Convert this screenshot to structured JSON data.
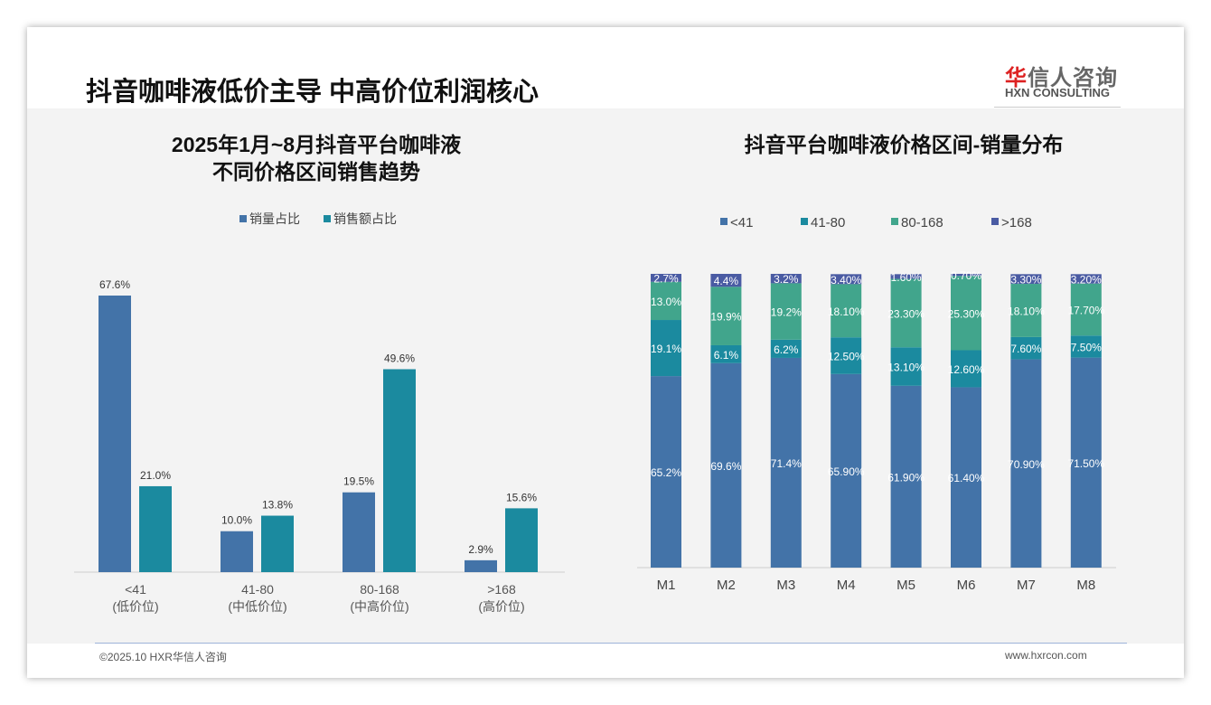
{
  "header": {
    "title": "抖音咖啡液低价主导 中高价位利润核心",
    "logo_cn_red": "华",
    "logo_cn": "信人咨询",
    "logo_en": "HXN CONSULTING"
  },
  "footer": {
    "copyright": "©2025.10 HXR华信人咨询",
    "url": "www.hxrcon.com"
  },
  "colors": {
    "blue": "#4373a8",
    "teal": "#1b8a9f",
    "green": "#41a58c",
    "navy": "#4a5ba3"
  },
  "chart_data": [
    {
      "type": "bar",
      "title_line1": "2025年1月~8月抖音平台咖啡液",
      "title_line2": "不同价格区间销售趋势",
      "categories": [
        "<41",
        "41-80",
        "80-168",
        ">168"
      ],
      "sublabels": [
        "(低价位)",
        "(中低价位)",
        "(中高价位)",
        "(高价位)"
      ],
      "series": [
        {
          "name": "销量占比",
          "values": [
            67.6,
            10.0,
            19.5,
            2.9
          ],
          "labels": [
            "67.6%",
            "10.0%",
            "19.5%",
            "2.9%"
          ]
        },
        {
          "name": "销售额占比",
          "values": [
            21.0,
            13.8,
            49.6,
            15.6
          ],
          "labels": [
            "21.0%",
            "13.8%",
            "49.6%",
            "15.6%"
          ]
        }
      ],
      "ylim": [
        0,
        70
      ],
      "legend": "top"
    },
    {
      "type": "bar",
      "stacked": true,
      "title": "抖音平台咖啡液价格区间-销量分布",
      "categories": [
        "M1",
        "M2",
        "M3",
        "M4",
        "M5",
        "M6",
        "M7",
        "M8"
      ],
      "series": [
        {
          "name": "<41",
          "values": [
            65.2,
            69.6,
            71.4,
            65.9,
            61.9,
            61.4,
            70.9,
            71.5
          ],
          "labels": [
            "65.2%",
            "69.6%",
            "71.4%",
            "65.90%",
            "61.90%",
            "61.40%",
            "70.90%",
            "71.50%"
          ]
        },
        {
          "name": "41-80",
          "values": [
            19.1,
            6.1,
            6.2,
            12.5,
            13.1,
            12.6,
            7.6,
            7.5
          ],
          "labels": [
            "19.1%",
            "6.1%",
            "6.2%",
            "12.50%",
            "13.10%",
            "12.60%",
            "7.60%",
            "7.50%"
          ]
        },
        {
          "name": "80-168",
          "values": [
            13.0,
            19.9,
            19.2,
            18.1,
            23.3,
            25.3,
            18.1,
            17.7
          ],
          "labels": [
            "13.0%",
            "19.9%",
            "19.2%",
            "18.10%",
            "23.30%",
            "25.30%",
            "18.10%",
            "17.70%"
          ]
        },
        {
          "name": ">168",
          "values": [
            2.7,
            4.4,
            3.2,
            3.4,
            1.6,
            0.7,
            3.3,
            3.2
          ],
          "labels": [
            "2.7%",
            "4.4%",
            "3.2%",
            "3.40%",
            "1.60%",
            "0.70%",
            "3.30%",
            "3.20%"
          ]
        }
      ],
      "ylim": [
        0,
        100
      ],
      "legend": "top"
    }
  ]
}
